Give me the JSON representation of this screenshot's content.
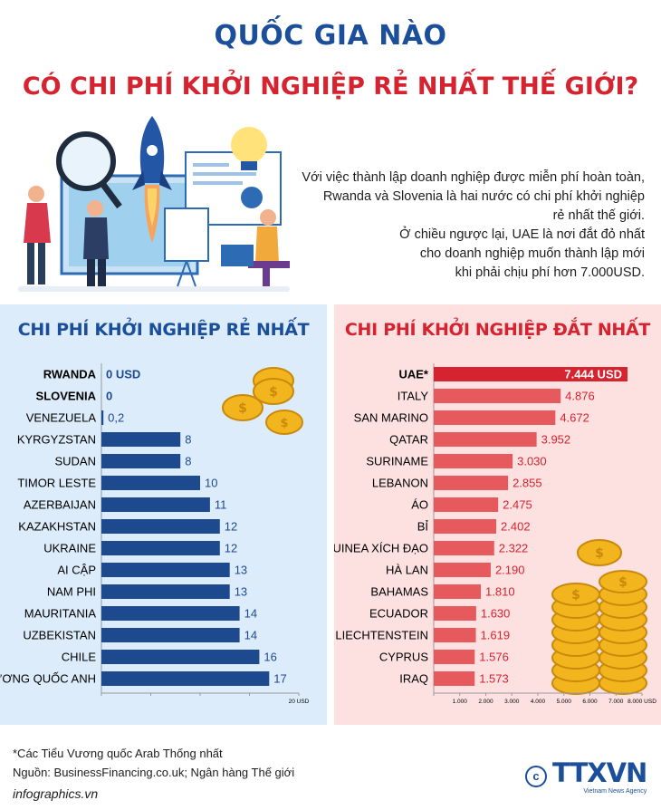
{
  "title_line1": "QUỐC GIA NÀO",
  "title_line2": "CÓ CHI PHÍ KHỞI NGHIỆP RẺ NHẤT THẾ GIỚI?",
  "intro_lines": [
    "Với việc thành lập doanh nghiệp được miễn phí hoàn toàn,",
    "Rwanda và Slovenia là hai nước có chi phí khởi nghiệp",
    "rẻ nhất thế giới.",
    "Ở chiều ngược lại, UAE là nơi đắt đỏ nhất",
    "cho doanh nghiệp muốn thành lập mới",
    "khi phải chịu phí hơn 7.000USD."
  ],
  "footer": {
    "note": "*Các Tiểu Vương quốc Arab Thống nhất",
    "source": "Nguồn: BusinessFinancing.co.uk; Ngân hàng Thế giới",
    "site": "infographics.vn",
    "logo_text": "TTXVN",
    "logo_sub": "Vietnam News Agency"
  },
  "colors": {
    "blue": "#1b4f9c",
    "red": "#d5232f",
    "bar_blue": "#1d4a8f",
    "bar_red": "#e65a5e",
    "bar_red_top": "#d5232f",
    "panel_blue": "#dcecfa",
    "panel_red": "#fde1e1"
  },
  "chart_data": [
    {
      "type": "bar",
      "orientation": "horizontal",
      "title": "CHI PHÍ KHỞI NGHIỆP RẺ NHẤT",
      "categories": [
        "RWANDA",
        "SLOVENIA",
        "VENEZUELA",
        "KYRGYZSTAN",
        "SUDAN",
        "TIMOR LESTE",
        "AZERBAIJAN",
        "KAZAKHSTAN",
        "UKRAINE",
        "AI CẬP",
        "NAM PHI",
        "MAURITANIA",
        "UZBEKISTAN",
        "CHILE",
        "VƯƠNG QUỐC ANH"
      ],
      "values": [
        0,
        0,
        0.2,
        8,
        8,
        10,
        11,
        12,
        12,
        13,
        13,
        14,
        14,
        16,
        17
      ],
      "value_labels": [
        "0 USD",
        "0",
        "0,2",
        "8",
        "8",
        "10",
        "11",
        "12",
        "12",
        "13",
        "13",
        "14",
        "14",
        "16",
        "17"
      ],
      "bold_categories": [
        "RWANDA",
        "SLOVENIA"
      ],
      "xlim": [
        0,
        20
      ],
      "xticks": [
        "",
        "",
        "",
        "",
        "20 USD"
      ]
    },
    {
      "type": "bar",
      "orientation": "horizontal",
      "title": "CHI PHÍ KHỞI NGHIỆP ĐẮT NHẤT",
      "categories": [
        "UAE*",
        "ITALY",
        "SAN MARINO",
        "QATAR",
        "SURINAME",
        "LEBANON",
        "ÁO",
        "BỈ",
        "GUINEA XÍCH ĐẠO",
        "HÀ LAN",
        "BAHAMAS",
        "ECUADOR",
        "LIECHTENSTEIN",
        "CYPRUS",
        "IRAQ"
      ],
      "values": [
        7444,
        4876,
        4672,
        3952,
        3030,
        2855,
        2475,
        2402,
        2322,
        2190,
        1810,
        1630,
        1619,
        1576,
        1573
      ],
      "value_labels": [
        "7.444 USD",
        "4.876",
        "4.672",
        "3.952",
        "3.030",
        "2.855",
        "2.475",
        "2.402",
        "2.322",
        "2.190",
        "1.810",
        "1.630",
        "1.619",
        "1.576",
        "1.573"
      ],
      "bold_categories": [
        "UAE*"
      ],
      "xlim": [
        0,
        8000
      ],
      "xticks": [
        "",
        "1.000",
        "2.000",
        "3.000",
        "4.000",
        "5.000",
        "6.000",
        "7.000",
        "8.000 USD"
      ]
    }
  ]
}
